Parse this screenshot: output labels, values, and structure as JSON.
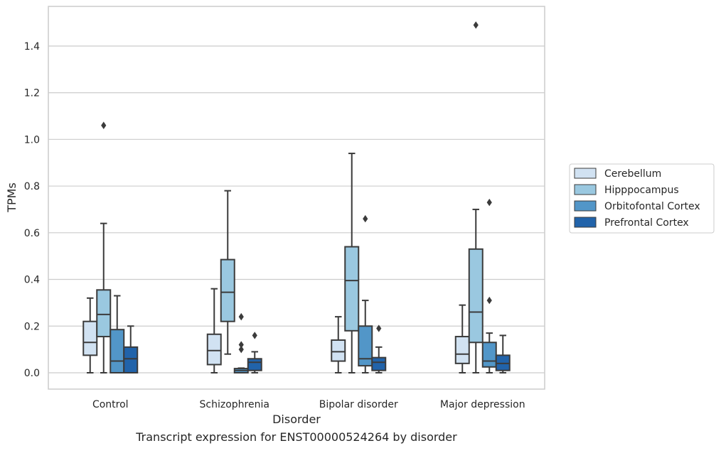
{
  "chart_data": {
    "type": "box",
    "caption": "Transcript expression for ENST00000524264 by disorder",
    "xlabel": "Disorder",
    "ylabel": "TPMs",
    "ylim": [
      -0.07,
      1.57
    ],
    "yticks": [
      0.0,
      0.2,
      0.4,
      0.6,
      0.8,
      1.0,
      1.2,
      1.4
    ],
    "ytick_labels": [
      "0.0",
      "0.2",
      "0.4",
      "0.6",
      "0.8",
      "1.0",
      "1.2",
      "1.4"
    ],
    "grid": "horizontal",
    "legend_position": "right",
    "categories": [
      "Control",
      "Schizophrenia",
      "Bipolar disorder",
      "Major depression"
    ],
    "series": [
      {
        "name": "Cerebellum",
        "color": "#d1e2f2",
        "boxes": [
          {
            "whisker_low": 0.0,
            "q1": 0.075,
            "median": 0.13,
            "q3": 0.22,
            "whisker_high": 0.32,
            "outliers": []
          },
          {
            "whisker_low": 0.0,
            "q1": 0.035,
            "median": 0.095,
            "q3": 0.165,
            "whisker_high": 0.36,
            "outliers": []
          },
          {
            "whisker_low": 0.0,
            "q1": 0.05,
            "median": 0.09,
            "q3": 0.14,
            "whisker_high": 0.24,
            "outliers": []
          },
          {
            "whisker_low": 0.0,
            "q1": 0.04,
            "median": 0.08,
            "q3": 0.155,
            "whisker_high": 0.29,
            "outliers": []
          }
        ]
      },
      {
        "name": "Hipppocampus",
        "color": "#9ac8e0",
        "boxes": [
          {
            "whisker_low": 0.0,
            "q1": 0.155,
            "median": 0.25,
            "q3": 0.355,
            "whisker_high": 0.64,
            "outliers": [
              1.06
            ]
          },
          {
            "whisker_low": 0.08,
            "q1": 0.22,
            "median": 0.345,
            "q3": 0.485,
            "whisker_high": 0.78,
            "outliers": []
          },
          {
            "whisker_low": 0.0,
            "q1": 0.18,
            "median": 0.395,
            "q3": 0.54,
            "whisker_high": 0.94,
            "outliers": []
          },
          {
            "whisker_low": 0.0,
            "q1": 0.13,
            "median": 0.26,
            "q3": 0.53,
            "whisker_high": 0.7,
            "outliers": [
              1.49
            ]
          }
        ]
      },
      {
        "name": "Orbitofontal Cortex",
        "color": "#5296c8",
        "boxes": [
          {
            "whisker_low": 0.0,
            "q1": 0.0,
            "median": 0.05,
            "q3": 0.185,
            "whisker_high": 0.33,
            "outliers": []
          },
          {
            "whisker_low": 0.0,
            "q1": 0.0,
            "median": 0.01,
            "q3": 0.018,
            "whisker_high": 0.02,
            "outliers": [
              0.1,
              0.12,
              0.24
            ]
          },
          {
            "whisker_low": 0.0,
            "q1": 0.03,
            "median": 0.06,
            "q3": 0.2,
            "whisker_high": 0.31,
            "outliers": [
              0.66
            ]
          },
          {
            "whisker_low": 0.0,
            "q1": 0.025,
            "median": 0.05,
            "q3": 0.13,
            "whisker_high": 0.17,
            "outliers": [
              0.31,
              0.73
            ]
          }
        ]
      },
      {
        "name": "Prefrontal Cortex",
        "color": "#2163aa",
        "boxes": [
          {
            "whisker_low": 0.0,
            "q1": 0.0,
            "median": 0.06,
            "q3": 0.11,
            "whisker_high": 0.2,
            "outliers": []
          },
          {
            "whisker_low": 0.0,
            "q1": 0.01,
            "median": 0.045,
            "q3": 0.06,
            "whisker_high": 0.09,
            "outliers": [
              0.16
            ]
          },
          {
            "whisker_low": 0.0,
            "q1": 0.01,
            "median": 0.045,
            "q3": 0.065,
            "whisker_high": 0.11,
            "outliers": [
              0.19
            ]
          },
          {
            "whisker_low": 0.0,
            "q1": 0.01,
            "median": 0.04,
            "q3": 0.075,
            "whisker_high": 0.16,
            "outliers": []
          }
        ]
      }
    ]
  }
}
